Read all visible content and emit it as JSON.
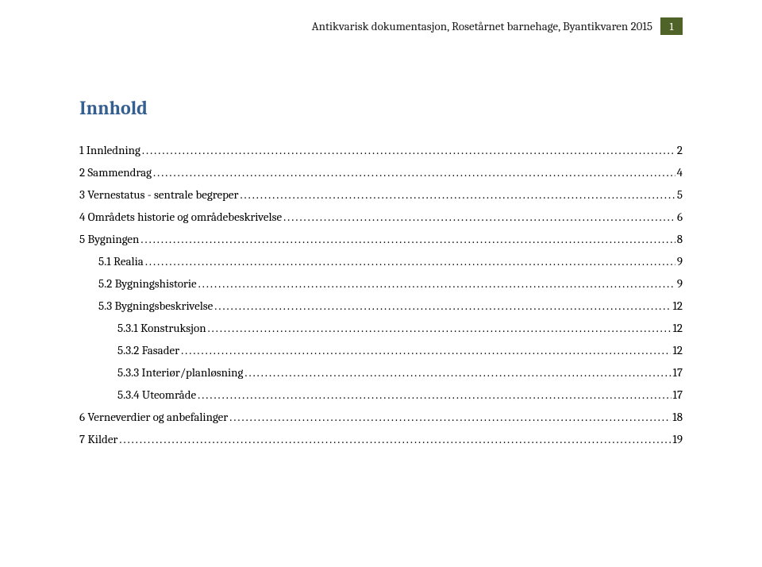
{
  "header": {
    "text": "Antikvarisk dokumentasjon, Rosetårnet barnehage, Byantikvaren 2015",
    "page_number": "1"
  },
  "title": "Innhold",
  "toc": [
    {
      "level": 0,
      "label": "1 Innledning",
      "page": "2"
    },
    {
      "level": 0,
      "label": "2 Sammendrag",
      "page": "4"
    },
    {
      "level": 0,
      "label": "3 Vernestatus - sentrale begreper",
      "page": "5"
    },
    {
      "level": 0,
      "label": "4 Områdets historie og områdebeskrivelse",
      "page": "6"
    },
    {
      "level": 0,
      "label": "5 Bygningen",
      "page": "8"
    },
    {
      "level": 1,
      "label": "5.1 Realia",
      "page": "9"
    },
    {
      "level": 1,
      "label": "5.2 Bygningshistorie",
      "page": "9"
    },
    {
      "level": 1,
      "label": "5.3 Bygningsbeskrivelse",
      "page": "12"
    },
    {
      "level": 2,
      "label": "5.3.1 Konstruksjon",
      "page": "12"
    },
    {
      "level": 2,
      "label": "5.3.2 Fasader",
      "page": "12"
    },
    {
      "level": 2,
      "label": "5.3.3 Interiør/planløsning",
      "page": "17"
    },
    {
      "level": 2,
      "label": "5.3.4 Uteområde",
      "page": "17"
    },
    {
      "level": 0,
      "label": "6 Verneverdier og anbefalinger",
      "page": "18"
    },
    {
      "level": 0,
      "label": "7 Kilder",
      "page": "19"
    }
  ]
}
